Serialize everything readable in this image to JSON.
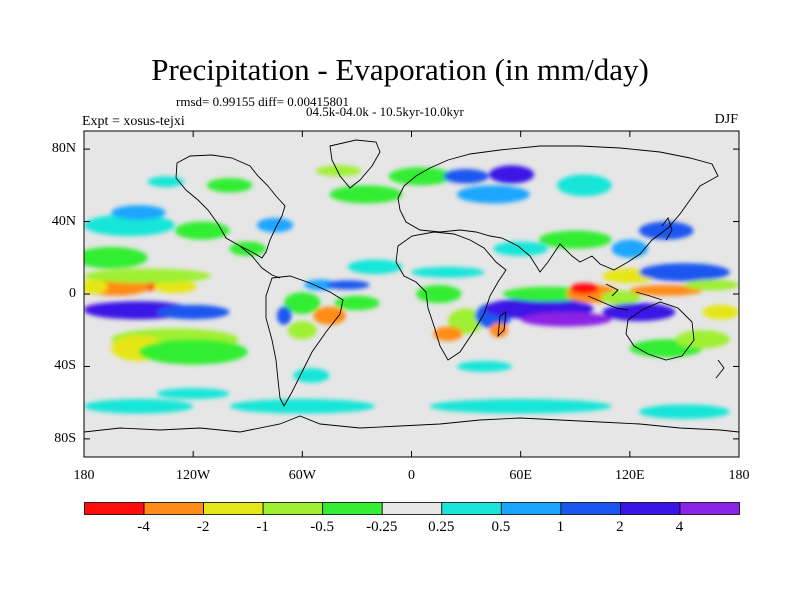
{
  "figure": {
    "title": "Precipitation - Evaporation (in mm/day)",
    "stats": "rmsd= 0.99155 diff= 0.00415801",
    "period": "04.5k-04.0k - 10.5kyr-10.0kyr",
    "experiment": "Expt = xosus-tejxi",
    "season": "DJF"
  },
  "chart_data": {
    "type": "heatmap",
    "projection": "cylindrical-equidistant",
    "xlim": [
      -180,
      180
    ],
    "ylim": [
      -90,
      90
    ],
    "x_ticks": [
      {
        "value": -180,
        "label": "180"
      },
      {
        "value": -120,
        "label": "120W"
      },
      {
        "value": -60,
        "label": "60W"
      },
      {
        "value": 0,
        "label": "0"
      },
      {
        "value": 60,
        "label": "60E"
      },
      {
        "value": 120,
        "label": "120E"
      },
      {
        "value": 180,
        "label": "180"
      }
    ],
    "y_ticks": [
      {
        "value": 80,
        "label": "80N"
      },
      {
        "value": 40,
        "label": "40N"
      },
      {
        "value": 0,
        "label": "0"
      },
      {
        "value": -40,
        "label": "40S"
      },
      {
        "value": -80,
        "label": "80S"
      }
    ],
    "colorbar": {
      "levels": [
        "-4",
        "-2",
        "-1",
        "-0.5",
        "-0.25",
        "0.25",
        "0.5",
        "1",
        "2",
        "4"
      ],
      "colors": [
        "#ff0d0d",
        "#ff8c19",
        "#e6e619",
        "#9ff033",
        "#33ee33",
        "#e6e6e6",
        "#19e6d8",
        "#1aa6ff",
        "#1a56f0",
        "#3a16e6",
        "#8c24e6"
      ]
    },
    "regions": [
      {
        "lon": -155,
        "lat": 5,
        "w": 50,
        "h": 7,
        "cls": 0
      },
      {
        "lon": -162,
        "lat": 4,
        "w": 36,
        "h": 10,
        "cls": 1
      },
      {
        "lon": -175,
        "lat": 4,
        "w": 16,
        "h": 8,
        "cls": 2
      },
      {
        "lon": -130,
        "lat": 4,
        "w": 24,
        "h": 7,
        "cls": 2
      },
      {
        "lon": -145,
        "lat": 10,
        "w": 70,
        "h": 8,
        "cls": 3
      },
      {
        "lon": -160,
        "lat": -8,
        "w": 40,
        "h": 7,
        "cls": 10
      },
      {
        "lon": -150,
        "lat": -9,
        "w": 60,
        "h": 10,
        "cls": 9
      },
      {
        "lon": -120,
        "lat": -10,
        "w": 40,
        "h": 8,
        "cls": 8
      },
      {
        "lon": -165,
        "lat": 20,
        "w": 40,
        "h": 12,
        "cls": 4
      },
      {
        "lon": -130,
        "lat": -25,
        "w": 70,
        "h": 12,
        "cls": 3
      },
      {
        "lon": -150,
        "lat": -30,
        "w": 30,
        "h": 14,
        "cls": 2
      },
      {
        "lon": -120,
        "lat": -32,
        "w": 60,
        "h": 14,
        "cls": 4
      },
      {
        "lon": -155,
        "lat": 38,
        "w": 50,
        "h": 12,
        "cls": 6
      },
      {
        "lon": -150,
        "lat": 45,
        "w": 30,
        "h": 8,
        "cls": 7
      },
      {
        "lon": -115,
        "lat": 35,
        "w": 30,
        "h": 10,
        "cls": 4
      },
      {
        "lon": -90,
        "lat": 25,
        "w": 20,
        "h": 8,
        "cls": 4
      },
      {
        "lon": -75,
        "lat": 38,
        "w": 20,
        "h": 8,
        "cls": 7
      },
      {
        "lon": -100,
        "lat": 60,
        "w": 25,
        "h": 8,
        "cls": 4
      },
      {
        "lon": -135,
        "lat": 62,
        "w": 20,
        "h": 6,
        "cls": 6
      },
      {
        "lon": -60,
        "lat": -5,
        "w": 20,
        "h": 12,
        "cls": 4
      },
      {
        "lon": -45,
        "lat": -12,
        "w": 18,
        "h": 10,
        "cls": 1
      },
      {
        "lon": -60,
        "lat": -20,
        "w": 16,
        "h": 10,
        "cls": 3
      },
      {
        "lon": -70,
        "lat": -12,
        "w": 8,
        "h": 10,
        "cls": 8
      },
      {
        "lon": -50,
        "lat": 5,
        "w": 18,
        "h": 6,
        "cls": 7
      },
      {
        "lon": -30,
        "lat": -5,
        "w": 25,
        "h": 8,
        "cls": 4
      },
      {
        "lon": -35,
        "lat": 5,
        "w": 24,
        "h": 5,
        "cls": 8
      },
      {
        "lon": -20,
        "lat": 15,
        "w": 30,
        "h": 8,
        "cls": 6
      },
      {
        "lon": -55,
        "lat": -45,
        "w": 20,
        "h": 8,
        "cls": 6
      },
      {
        "lon": -25,
        "lat": 55,
        "w": 40,
        "h": 10,
        "cls": 4
      },
      {
        "lon": -40,
        "lat": 68,
        "w": 25,
        "h": 6,
        "cls": 3
      },
      {
        "lon": 5,
        "lat": 65,
        "w": 35,
        "h": 10,
        "cls": 4
      },
      {
        "lon": 30,
        "lat": 65,
        "w": 25,
        "h": 8,
        "cls": 8
      },
      {
        "lon": 55,
        "lat": 66,
        "w": 25,
        "h": 10,
        "cls": 9
      },
      {
        "lon": 45,
        "lat": 55,
        "w": 40,
        "h": 10,
        "cls": 7
      },
      {
        "lon": 95,
        "lat": 60,
        "w": 30,
        "h": 12,
        "cls": 6
      },
      {
        "lon": 15,
        "lat": 0,
        "w": 25,
        "h": 10,
        "cls": 4
      },
      {
        "lon": 30,
        "lat": -15,
        "w": 20,
        "h": 14,
        "cls": 3
      },
      {
        "lon": 20,
        "lat": -22,
        "w": 16,
        "h": 8,
        "cls": 1
      },
      {
        "lon": 45,
        "lat": -12,
        "w": 20,
        "h": 14,
        "cls": 8
      },
      {
        "lon": 48,
        "lat": -20,
        "w": 10,
        "h": 8,
        "cls": 1
      },
      {
        "lon": 20,
        "lat": 12,
        "w": 40,
        "h": 6,
        "cls": 6
      },
      {
        "lon": 70,
        "lat": -8,
        "w": 60,
        "h": 12,
        "cls": 9
      },
      {
        "lon": 85,
        "lat": -14,
        "w": 50,
        "h": 8,
        "cls": 10
      },
      {
        "lon": 75,
        "lat": 0,
        "w": 50,
        "h": 8,
        "cls": 4
      },
      {
        "lon": 100,
        "lat": 0,
        "w": 30,
        "h": 10,
        "cls": 1
      },
      {
        "lon": 95,
        "lat": 3,
        "w": 16,
        "h": 6,
        "cls": 0
      },
      {
        "lon": 115,
        "lat": -2,
        "w": 22,
        "h": 8,
        "cls": 3
      },
      {
        "lon": 125,
        "lat": -10,
        "w": 40,
        "h": 10,
        "cls": 9
      },
      {
        "lon": 120,
        "lat": 10,
        "w": 30,
        "h": 8,
        "cls": 2
      },
      {
        "lon": 140,
        "lat": 2,
        "w": 40,
        "h": 6,
        "cls": 1
      },
      {
        "lon": 150,
        "lat": 12,
        "w": 50,
        "h": 10,
        "cls": 8
      },
      {
        "lon": 165,
        "lat": 5,
        "w": 30,
        "h": 6,
        "cls": 3
      },
      {
        "lon": 140,
        "lat": 35,
        "w": 30,
        "h": 10,
        "cls": 8
      },
      {
        "lon": 120,
        "lat": 25,
        "w": 20,
        "h": 10,
        "cls": 7
      },
      {
        "lon": 90,
        "lat": 30,
        "w": 40,
        "h": 10,
        "cls": 4
      },
      {
        "lon": 60,
        "lat": 25,
        "w": 30,
        "h": 8,
        "cls": 6
      },
      {
        "lon": 140,
        "lat": -30,
        "w": 40,
        "h": 10,
        "cls": 4
      },
      {
        "lon": 160,
        "lat": -25,
        "w": 30,
        "h": 10,
        "cls": 3
      },
      {
        "lon": 170,
        "lat": -10,
        "w": 20,
        "h": 8,
        "cls": 2
      },
      {
        "lon": 40,
        "lat": -40,
        "w": 30,
        "h": 6,
        "cls": 6
      },
      {
        "lon": -150,
        "lat": -62,
        "w": 60,
        "h": 8,
        "cls": 6
      },
      {
        "lon": -60,
        "lat": -62,
        "w": 80,
        "h": 8,
        "cls": 6
      },
      {
        "lon": 60,
        "lat": -62,
        "w": 100,
        "h": 8,
        "cls": 6
      },
      {
        "lon": 150,
        "lat": -65,
        "w": 50,
        "h": 8,
        "cls": 6
      },
      {
        "lon": -120,
        "lat": -55,
        "w": 40,
        "h": 6,
        "cls": 6
      }
    ]
  }
}
